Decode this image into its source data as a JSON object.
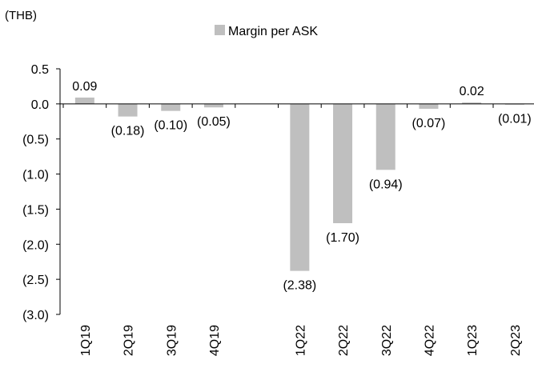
{
  "chart_data": {
    "type": "bar",
    "unit_label": "(THB)",
    "categories": [
      "1Q19",
      "2Q19",
      "3Q19",
      "4Q19",
      "",
      "1Q22",
      "2Q22",
      "3Q22",
      "4Q22",
      "1Q23",
      "2Q23"
    ],
    "series": [
      {
        "name": "Margin per ASK",
        "values": [
          0.09,
          -0.18,
          -0.1,
          -0.05,
          null,
          -2.38,
          -1.7,
          -0.94,
          -0.07,
          0.02,
          -0.01
        ],
        "data_labels": [
          "0.09",
          "(0.18)",
          "(0.10)",
          "(0.05)",
          "",
          "(2.38)",
          "(1.70)",
          "(0.94)",
          "(0.07)",
          "0.02",
          "(0.01)"
        ]
      }
    ],
    "ylim": [
      -3.0,
      0.5
    ],
    "yticks": [
      0.5,
      0.0,
      -0.5,
      -1.0,
      -1.5,
      -2.0,
      -2.5,
      -3.0
    ],
    "ytick_labels": [
      "0.5",
      "0.0",
      "(0.5)",
      "(1.0)",
      "(1.5)",
      "(2.0)",
      "(2.5)",
      "(3.0)"
    ],
    "grid": false,
    "legend_position": "top-center",
    "colors": {
      "bar": "#bfbfbf",
      "axis": "#000000"
    }
  }
}
